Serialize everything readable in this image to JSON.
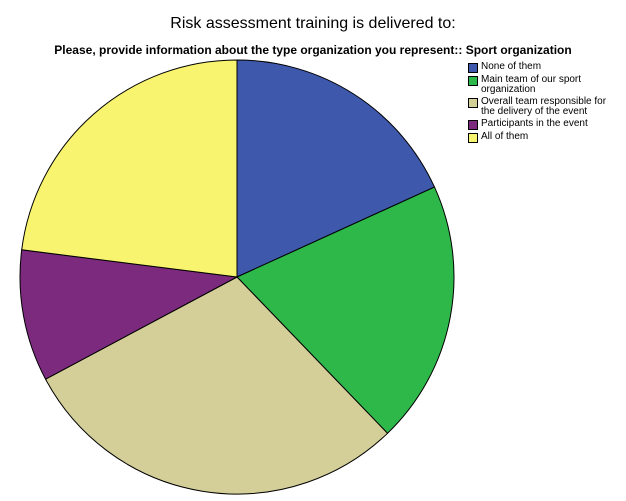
{
  "chart_data": {
    "type": "pie",
    "title": "Risk assessment training is delivered to:",
    "subtitle": "Please, provide information about the type organization you represent:: Sport organization",
    "categories": [
      "None of them",
      "Main team of our sport organization",
      "Overall team responsible for the delivery of the event",
      "Participants in the event",
      "All of them"
    ],
    "values": [
      18.2,
      19.6,
      29.4,
      9.8,
      23.0
    ],
    "colors": [
      "#3e58ac",
      "#2eb84a",
      "#d4cf98",
      "#7b2a7e",
      "#f8f46f"
    ],
    "legend": "right"
  }
}
